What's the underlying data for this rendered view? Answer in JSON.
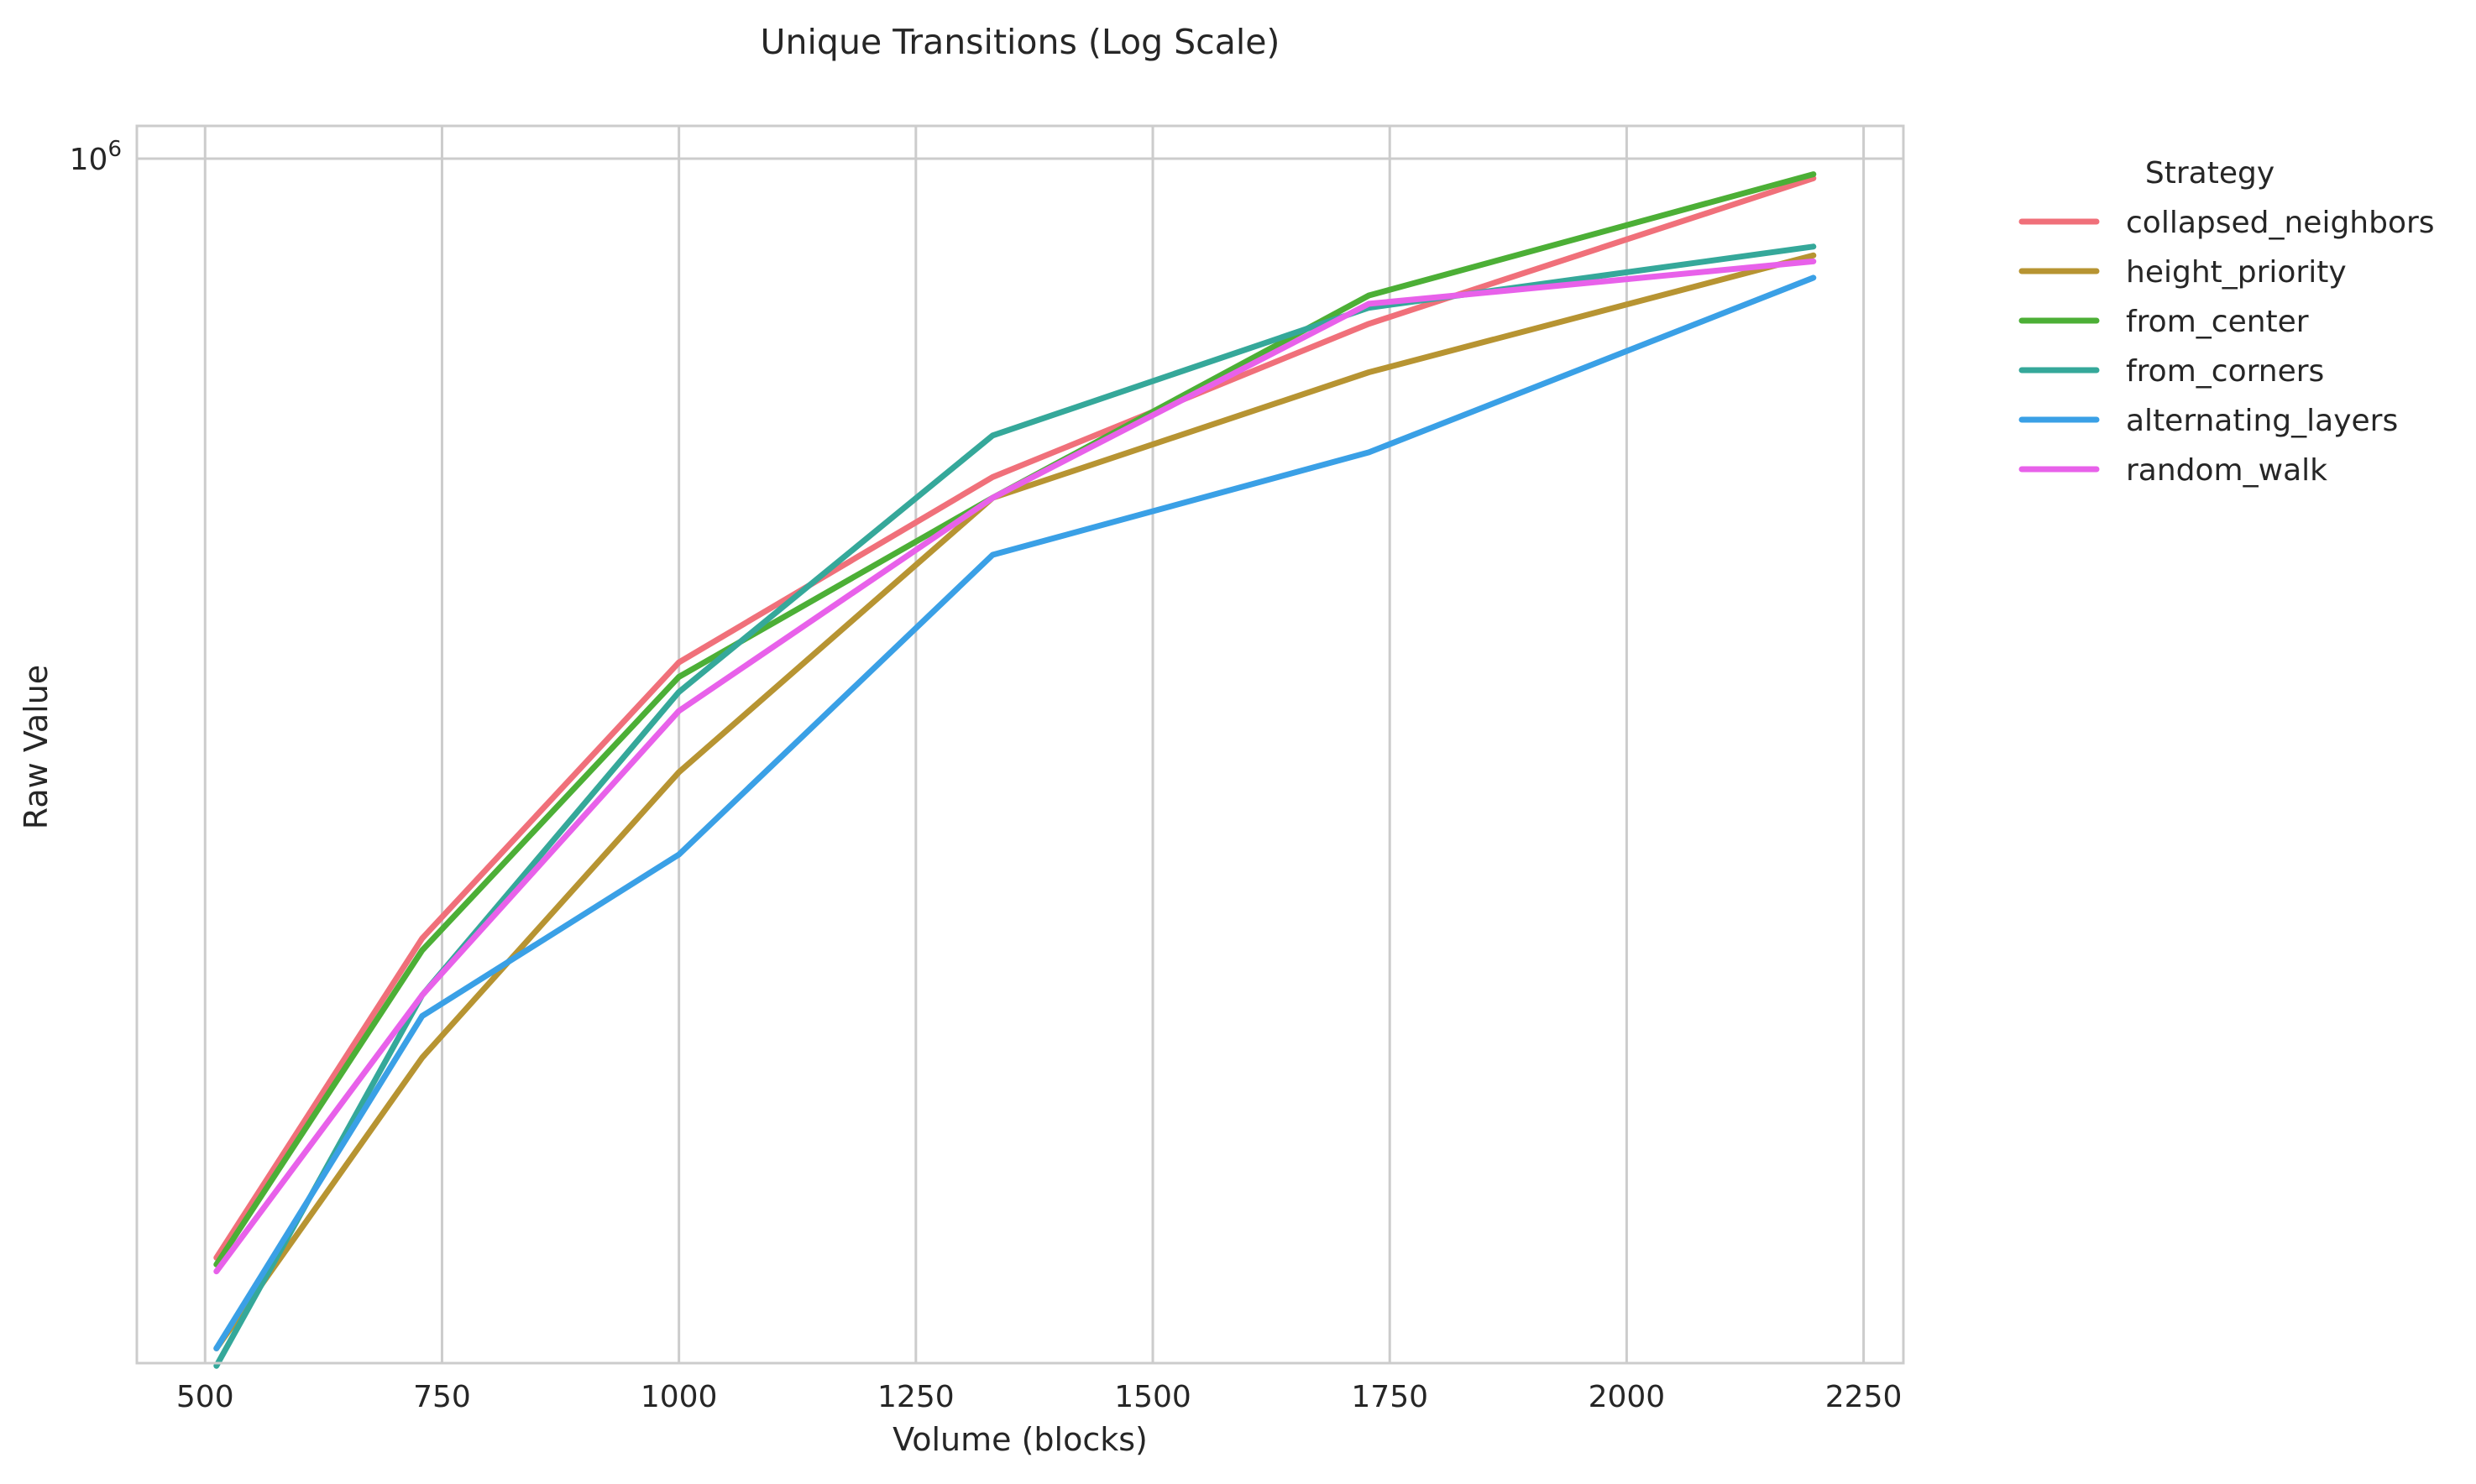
{
  "chart_data": {
    "type": "line",
    "title": "Unique Transitions (Log Scale)",
    "xlabel": "Volume (blocks)",
    "ylabel": "Raw Value",
    "yscale": "log",
    "xlim": [
      428,
      2292
    ],
    "ylim_log10": [
      4.6365,
      6.037
    ],
    "x_ticks": [
      500,
      750,
      1000,
      1250,
      1500,
      1750,
      2000,
      2250
    ],
    "y_ticks": [
      {
        "value": 1000000,
        "base": "10",
        "exponent": "6"
      }
    ],
    "grid": true,
    "legend": {
      "title": "Strategy",
      "position": "outside-right-top"
    },
    "x": [
      512,
      729,
      1000,
      1331,
      1728,
      2197
    ],
    "series": [
      {
        "name": "collapsed_neighbors",
        "color": "#f0707a",
        "values": [
          57000,
          131000,
          269000,
          436000,
          650000,
          950000
        ]
      },
      {
        "name": "height_priority",
        "color": "#b79432",
        "values": [
          45000,
          96000,
          202000,
          413000,
          573000,
          777000
        ]
      },
      {
        "name": "from_center",
        "color": "#4caf36",
        "values": [
          56000,
          127000,
          259000,
          413000,
          700000,
          960000
        ]
      },
      {
        "name": "from_corners",
        "color": "#35a89a",
        "values": [
          43000,
          113000,
          249000,
          486000,
          678000,
          795000
        ]
      },
      {
        "name": "alternating_layers",
        "color": "#3aa0e6",
        "values": [
          45000,
          107000,
          163000,
          356000,
          465000,
          733000
        ]
      },
      {
        "name": "random_walk",
        "color": "#e861ea",
        "values": [
          55000,
          113000,
          237000,
          413000,
          685000,
          765000
        ]
      }
    ]
  }
}
